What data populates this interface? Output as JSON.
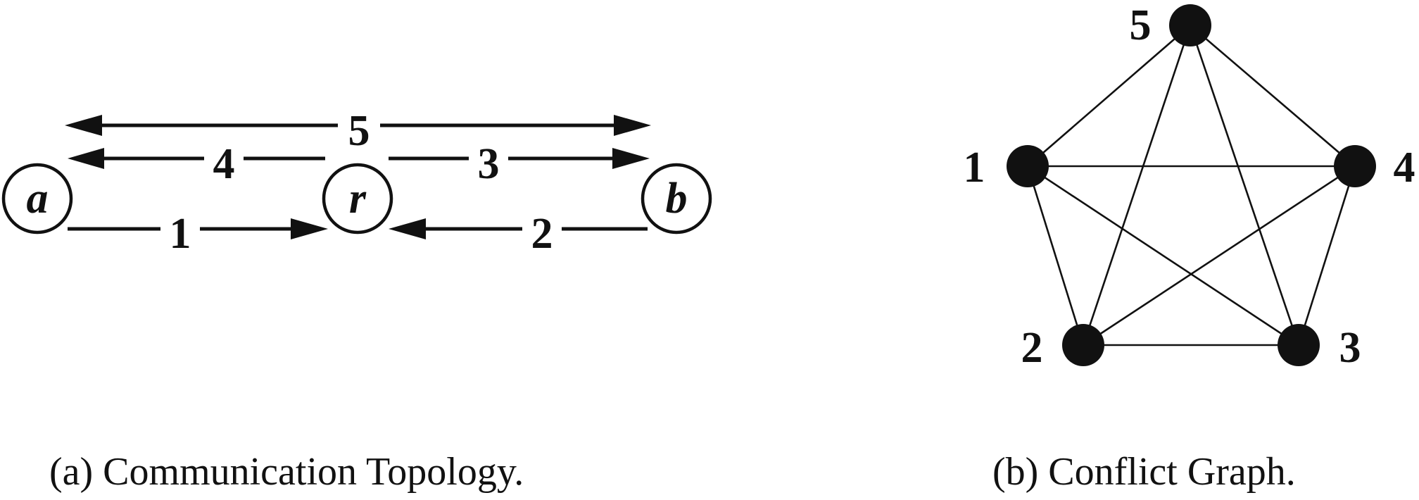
{
  "topology": {
    "caption": "(a)  Communication Topology.",
    "nodes": [
      {
        "id": "a",
        "label": "a"
      },
      {
        "id": "r",
        "label": "r"
      },
      {
        "id": "b",
        "label": "b"
      }
    ],
    "links": [
      {
        "id": "5",
        "label": "5",
        "from": "a",
        "to": "b",
        "direction": "bidirectional"
      },
      {
        "id": "4",
        "label": "4",
        "from": "r",
        "to": "a"
      },
      {
        "id": "3",
        "label": "3",
        "from": "r",
        "to": "b"
      },
      {
        "id": "1",
        "label": "1",
        "from": "a",
        "to": "r"
      },
      {
        "id": "2",
        "label": "2",
        "from": "b",
        "to": "r"
      }
    ]
  },
  "conflict": {
    "caption": "(b)  Conflict Graph.",
    "vertices": [
      {
        "id": "1",
        "label": "1"
      },
      {
        "id": "2",
        "label": "2"
      },
      {
        "id": "3",
        "label": "3"
      },
      {
        "id": "4",
        "label": "4"
      },
      {
        "id": "5",
        "label": "5"
      }
    ],
    "edges": [
      [
        "5",
        "1"
      ],
      [
        "5",
        "4"
      ],
      [
        "5",
        "2"
      ],
      [
        "5",
        "3"
      ],
      [
        "1",
        "4"
      ],
      [
        "1",
        "2"
      ],
      [
        "1",
        "3"
      ],
      [
        "4",
        "2"
      ],
      [
        "4",
        "3"
      ],
      [
        "2",
        "3"
      ]
    ]
  }
}
